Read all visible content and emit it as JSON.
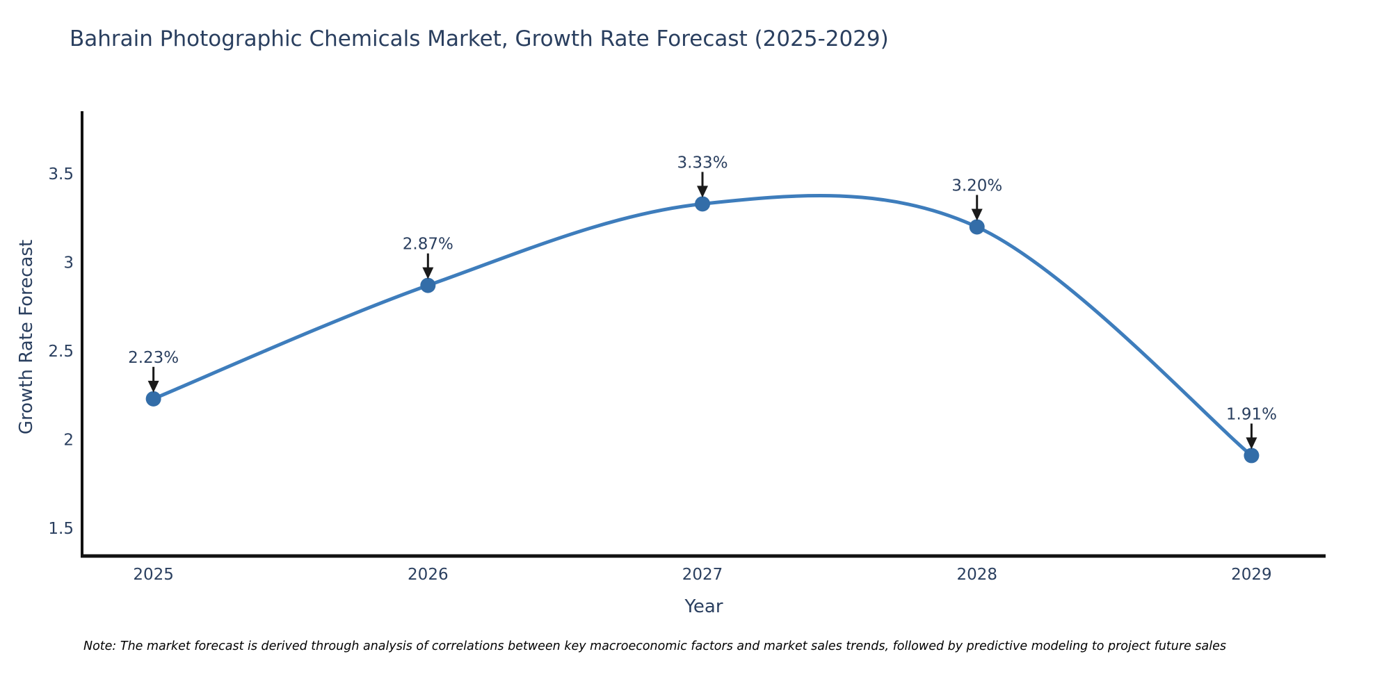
{
  "title": "Bahrain Photographic Chemicals Market, Growth Rate Forecast (2025-2029)",
  "note": "Note: The market forecast is derived through analysis of correlations between key macroeconomic factors and market sales trends, followed by predictive modeling to project future sales",
  "chart_data": {
    "type": "line",
    "line_shape": "spline",
    "title": "Bahrain Photographic Chemicals Market, Growth Rate Forecast (2025-2029)",
    "xlabel": "Year",
    "ylabel": "Growth Rate Forecast",
    "x": [
      2025,
      2026,
      2027,
      2028,
      2029
    ],
    "values": [
      2.23,
      2.87,
      3.33,
      3.2,
      1.91
    ],
    "point_labels": [
      "2.23%",
      "2.87%",
      "3.33%",
      "3.20%",
      "1.91%"
    ],
    "xtick_labels": [
      "2025",
      "2026",
      "2027",
      "2028",
      "2029"
    ],
    "yticks": [
      1.5,
      2,
      2.5,
      3,
      3.5
    ],
    "ytick_labels": [
      "1.5",
      "2",
      "2.5",
      "3",
      "3.5"
    ],
    "xlim": [
      2024.74,
      2029.27
    ],
    "ylim": [
      1.343,
      3.853
    ],
    "grid": false,
    "legend": "none",
    "colors": {
      "line": "#3e7dbc",
      "marker": "#336da8",
      "axis_line": "#111111",
      "tick_text": "#2a3f5f",
      "annotation_text": "#2a3f5f",
      "annotation_arrow": "#1a1a1a",
      "title_text": "#2a3f5f"
    }
  }
}
